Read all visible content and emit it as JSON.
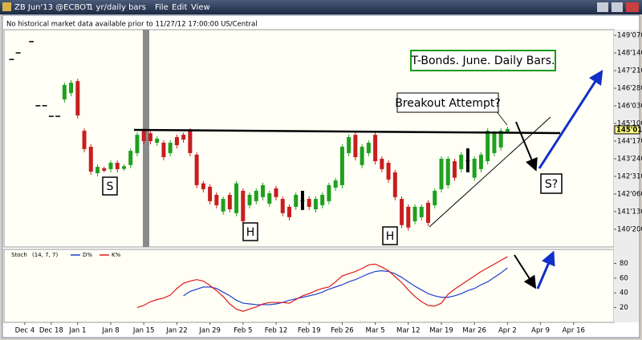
{
  "toolbar": {
    "symbol": "ZB Jun'13 @ECBOT",
    "interval": "1 yr/daily bars",
    "menus": [
      "File",
      "Edit",
      "View"
    ]
  },
  "notice": "No historical market data available prior to 11/27/12 17:00:00 US/Central",
  "chart_data": [
    {
      "type": "ohlc",
      "title": "T-Bonds. June. Daily Bars.",
      "annotations": [
        "Breakout Attempt?",
        "S",
        "H",
        "H",
        "S?"
      ],
      "categories": [
        null,
        null,
        "Dec 4",
        null,
        null,
        null,
        "Dec 18",
        null,
        null,
        null,
        "Jan 1",
        null,
        null,
        null,
        null,
        "Jan 8",
        null,
        null,
        null,
        null,
        "Jan 15",
        null,
        null,
        null,
        null,
        "Jan 22",
        null,
        null,
        null,
        null,
        "Jan 29",
        null,
        null,
        null,
        null,
        "Feb 5",
        null,
        null,
        null,
        null,
        "Feb 12",
        null,
        null,
        null,
        null,
        "Feb 19",
        null,
        null,
        null,
        null,
        "Feb 26",
        null,
        null,
        null,
        null,
        "Mar 5",
        null,
        null,
        null,
        null,
        "Mar 12",
        null,
        null,
        null,
        null,
        "Mar 19",
        null,
        null,
        null,
        null,
        "Mar 26",
        null,
        null,
        null,
        null,
        "Apr 2",
        null,
        null,
        null,
        null,
        "Apr 9",
        null,
        null,
        null,
        null,
        "Apr 16"
      ],
      "open": [
        148.15,
        148.44,
        null,
        148.94,
        146.1,
        146.1,
        145.63,
        145.63,
        146.38,
        146.66,
        147.19,
        144.99,
        144.28,
        143.11,
        143.33,
        143.29,
        143.57,
        143.3,
        143.47,
        144.0,
        144.99,
        144.88,
        144.46,
        144.46,
        144.0,
        144.71,
        144.81,
        144.99,
        143.93,
        142.66,
        142.51,
        142.15,
        141.41,
        142.15,
        141.34,
        142.33,
        141.69,
        141.87,
        142.05,
        141.76,
        142.44,
        141.97,
        141.62,
        141.62,
        141.91,
        141.97,
        141.51,
        141.69,
        141.87,
        142.47,
        142.58,
        144.0,
        144.81,
        143.47,
        144.0,
        144.81,
        143.75,
        143.57,
        143.15,
        141.97,
        141.62,
        140.98,
        141.16,
        141.8,
        141.69,
        142.4,
        142.58,
        143.64,
        143.29,
        143.68,
        142.91,
        143.29,
        143.64,
        144.0,
        144.25,
        144.95,
        null,
        null,
        null,
        null,
        null,
        null,
        null,
        null,
        null,
        null
      ],
      "high": [
        148.15,
        148.44,
        null,
        148.94,
        146.1,
        146.1,
        145.63,
        145.63,
        147.13,
        147.23,
        147.3,
        145.1,
        144.39,
        143.5,
        143.4,
        143.68,
        143.68,
        143.5,
        144.21,
        144.92,
        145.1,
        144.99,
        144.75,
        144.57,
        144.57,
        144.82,
        144.92,
        145.1,
        144.04,
        142.77,
        142.62,
        142.26,
        142.08,
        142.26,
        142.77,
        142.44,
        142.26,
        142.44,
        142.69,
        142.33,
        142.55,
        142.08,
        141.73,
        142.26,
        142.33,
        142.08,
        142.08,
        142.26,
        142.69,
        142.9,
        144.39,
        144.82,
        144.92,
        144.39,
        144.57,
        144.92,
        143.86,
        143.68,
        143.26,
        142.08,
        141.73,
        141.73,
        141.73,
        141.91,
        142.44,
        143.86,
        143.86,
        143.75,
        144.04,
        144.21,
        143.86,
        144.04,
        145.1,
        144.99,
        145.1,
        145.17,
        null,
        null,
        null,
        null,
        null,
        null,
        null,
        null,
        null,
        null
      ],
      "low": [
        148.15,
        148.44,
        null,
        148.94,
        146.1,
        146.1,
        145.63,
        145.63,
        146.24,
        146.52,
        145.53,
        144.04,
        143.04,
        142.97,
        143.15,
        143.15,
        143.15,
        143.22,
        143.33,
        143.86,
        144.39,
        144.39,
        144.32,
        143.68,
        143.86,
        144.21,
        144.46,
        143.86,
        142.44,
        142.26,
        141.73,
        141.55,
        141.27,
        141.37,
        141.2,
        140.84,
        141.55,
        141.73,
        141.91,
        141.62,
        141.91,
        141.2,
        141.02,
        141.48,
        141.48,
        141.48,
        141.37,
        141.55,
        141.73,
        142.33,
        142.44,
        143.86,
        143.68,
        143.33,
        143.86,
        143.5,
        143.15,
        142.69,
        141.91,
        140.67,
        140.56,
        140.84,
        141.02,
        140.77,
        141.55,
        142.26,
        142.44,
        142.77,
        143.15,
        143.15,
        142.77,
        143.15,
        143.5,
        143.86,
        144.11,
        144.92,
        null,
        null,
        null,
        null,
        null,
        null,
        null,
        null,
        null,
        null
      ],
      "close": [
        148.15,
        148.44,
        null,
        148.94,
        146.1,
        146.1,
        145.63,
        145.63,
        147.02,
        147.12,
        145.67,
        144.18,
        143.18,
        143.39,
        143.22,
        143.57,
        143.29,
        143.42,
        144.1,
        144.81,
        144.53,
        144.53,
        144.64,
        143.82,
        144.46,
        144.35,
        144.6,
        144.0,
        142.58,
        142.4,
        141.87,
        141.69,
        141.97,
        141.51,
        142.66,
        140.98,
        142.15,
        142.33,
        142.58,
        142.22,
        142.05,
        141.34,
        141.16,
        142.15,
        141.91,
        141.62,
        141.97,
        142.15,
        142.58,
        142.79,
        144.28,
        144.71,
        143.82,
        144.28,
        144.46,
        143.64,
        143.29,
        142.83,
        142.05,
        140.81,
        140.7,
        141.62,
        141.62,
        140.91,
        142.33,
        143.75,
        143.75,
        142.91,
        143.93,
        143.68,
        143.75,
        143.93,
        144.99,
        144.88,
        144.99,
        145.07,
        null,
        null,
        null,
        null,
        null,
        null,
        null,
        null,
        null,
        null
      ],
      "colors": {
        "up": "#1fa01f",
        "down": "#c81e1e",
        "flat": "#000000"
      },
      "ylim": [
        139.84,
        149.47
      ],
      "yticks": [
        {
          "value": 149.21875,
          "label": "149'070"
        },
        {
          "value": 148.4375,
          "label": "148'140"
        },
        {
          "value": 147.65625,
          "label": "147'210"
        },
        {
          "value": 146.875,
          "label": "146'280"
        },
        {
          "value": 146.09375,
          "label": "146'030"
        },
        {
          "value": 145.3125,
          "label": "145'100"
        },
        {
          "value": 144.53125,
          "label": "144'170"
        },
        {
          "value": 143.75,
          "label": "143'240"
        },
        {
          "value": 142.96875,
          "label": "142'310"
        },
        {
          "value": 142.1875,
          "label": "142'060"
        },
        {
          "value": 141.40625,
          "label": "141'130"
        },
        {
          "value": 140.625,
          "label": "140'200"
        }
      ],
      "last": {
        "value": 145.03125,
        "label": "145'010"
      },
      "grid": false
    },
    {
      "type": "line",
      "title": "Stoch",
      "params": "(14, 7, 7)",
      "series": [
        {
          "name": "D%",
          "color": "#1f3fd0",
          "values": [
            null,
            null,
            null,
            null,
            null,
            null,
            null,
            null,
            null,
            null,
            null,
            null,
            null,
            null,
            null,
            null,
            null,
            null,
            null,
            null,
            null,
            null,
            null,
            null,
            null,
            null,
            36,
            42,
            45,
            48,
            48,
            46,
            41,
            36,
            30,
            26,
            25,
            24,
            24,
            24,
            25,
            27,
            30,
            32,
            34,
            36,
            38,
            41,
            45,
            48,
            51,
            55,
            58,
            62,
            66,
            69,
            70,
            69,
            66,
            61,
            55,
            49,
            44,
            39,
            36,
            34,
            34,
            36,
            39,
            43,
            46,
            51,
            55,
            61,
            67,
            74,
            null,
            null,
            null,
            null,
            null,
            null,
            null,
            null,
            null,
            null
          ]
        },
        {
          "name": "K%",
          "color": "#e01818",
          "values": [
            null,
            null,
            null,
            null,
            null,
            null,
            null,
            null,
            null,
            null,
            null,
            null,
            null,
            null,
            null,
            null,
            null,
            null,
            null,
            20,
            23,
            28,
            31,
            33,
            37,
            46,
            53,
            56,
            58,
            56,
            50,
            43,
            35,
            25,
            18,
            15,
            18,
            21,
            25,
            27,
            27,
            27,
            26,
            31,
            36,
            39,
            43,
            46,
            48,
            55,
            63,
            66,
            69,
            73,
            78,
            79,
            75,
            70,
            62,
            54,
            44,
            35,
            28,
            23,
            22,
            26,
            38,
            45,
            51,
            57,
            63,
            69,
            74,
            79,
            84,
            89,
            null,
            null,
            null,
            null,
            null,
            null,
            null,
            null,
            null,
            null
          ]
        }
      ],
      "ylim": [
        0,
        99
      ],
      "yticks": [
        20,
        40,
        60,
        80
      ],
      "grid": false
    }
  ]
}
